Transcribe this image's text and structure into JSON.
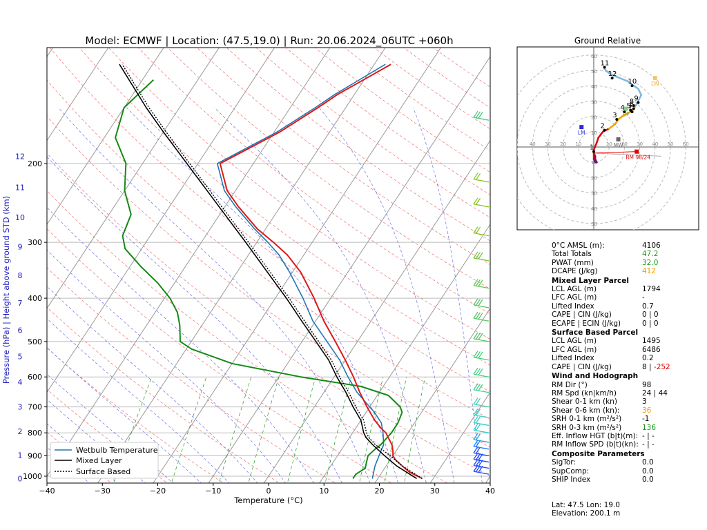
{
  "chart_data": {
    "type": "skew-t",
    "title": "Model: ECMWF | Location: (47.5,19.0) | Run: 20.06.2024_06UTC +060h",
    "xlabel": "Temperature (°C)",
    "ylabel": "Pressure (hPa)   |   Height above ground STD (km)",
    "xticks": [
      -40,
      -30,
      -20,
      -10,
      0,
      10,
      20,
      30,
      40
    ],
    "pressure_ticks": [
      200,
      300,
      400,
      500,
      600,
      700,
      800,
      900,
      1000
    ],
    "height_ticks_km": [
      0,
      1,
      2,
      3,
      4,
      5,
      6,
      7,
      8,
      9,
      10,
      11,
      12
    ],
    "legend": [
      "Wetbulb Temperature",
      "Mixed Layer",
      "Surface Based"
    ],
    "temperature": [
      [
        1012,
        28
      ],
      [
        980,
        25
      ],
      [
        950,
        23
      ],
      [
        920,
        21
      ],
      [
        900,
        20
      ],
      [
        880,
        19.5
      ],
      [
        850,
        18.5
      ],
      [
        820,
        17
      ],
      [
        800,
        16
      ],
      [
        780,
        14.5
      ],
      [
        750,
        12.5
      ],
      [
        700,
        9.5
      ],
      [
        650,
        6.5
      ],
      [
        600,
        3.5
      ],
      [
        550,
        0
      ],
      [
        500,
        -4
      ],
      [
        450,
        -8.5
      ],
      [
        400,
        -13
      ],
      [
        350,
        -18.5
      ],
      [
        320,
        -23
      ],
      [
        300,
        -27
      ],
      [
        280,
        -31.5
      ],
      [
        250,
        -37.5
      ],
      [
        230,
        -41.5
      ],
      [
        200,
        -46
      ],
      [
        170,
        -39
      ],
      [
        150,
        -35
      ],
      [
        140,
        -33
      ],
      [
        120,
        -27
      ]
    ],
    "dewpoint": [
      [
        1012,
        15.5
      ],
      [
        990,
        15.5
      ],
      [
        960,
        16.5
      ],
      [
        930,
        16
      ],
      [
        900,
        15.5
      ],
      [
        870,
        16
      ],
      [
        850,
        16.5
      ],
      [
        800,
        17
      ],
      [
        760,
        17
      ],
      [
        720,
        16.5
      ],
      [
        700,
        15.5
      ],
      [
        660,
        12
      ],
      [
        630,
        6
      ],
      [
        600,
        -6
      ],
      [
        560,
        -20
      ],
      [
        520,
        -29
      ],
      [
        500,
        -32
      ],
      [
        460,
        -34
      ],
      [
        430,
        -36
      ],
      [
        400,
        -39
      ],
      [
        370,
        -43
      ],
      [
        340,
        -48
      ],
      [
        310,
        -53
      ],
      [
        290,
        -55
      ],
      [
        260,
        -56
      ],
      [
        230,
        -60
      ],
      [
        200,
        -63
      ],
      [
        175,
        -68
      ],
      [
        150,
        -70
      ],
      [
        130,
        -68
      ]
    ],
    "wetbulb": [
      [
        1012,
        19
      ],
      [
        950,
        18
      ],
      [
        900,
        17.5
      ],
      [
        850,
        17
      ],
      [
        800,
        15.5
      ],
      [
        760,
        14
      ],
      [
        720,
        11.5
      ],
      [
        700,
        10
      ],
      [
        650,
        6
      ],
      [
        600,
        2.5
      ],
      [
        550,
        -1
      ],
      [
        500,
        -5.5
      ],
      [
        450,
        -10.5
      ],
      [
        400,
        -15
      ],
      [
        350,
        -20.5
      ],
      [
        320,
        -24.5
      ],
      [
        300,
        -28
      ],
      [
        280,
        -32
      ],
      [
        250,
        -38
      ],
      [
        230,
        -42
      ],
      [
        200,
        -46.5
      ],
      [
        170,
        -39.5
      ],
      [
        150,
        -35.5
      ],
      [
        140,
        -33.5
      ],
      [
        120,
        -28
      ]
    ],
    "mixed_layer_parcel": [
      [
        1012,
        27
      ],
      [
        950,
        22
      ],
      [
        900,
        18.5
      ],
      [
        850,
        15
      ],
      [
        820,
        13
      ],
      [
        800,
        12
      ],
      [
        750,
        10
      ],
      [
        700,
        7
      ],
      [
        650,
        4
      ],
      [
        600,
        0.5
      ],
      [
        550,
        -3
      ],
      [
        500,
        -7.5
      ],
      [
        450,
        -12.5
      ],
      [
        400,
        -18
      ],
      [
        350,
        -24.5
      ],
      [
        300,
        -32
      ],
      [
        250,
        -41
      ],
      [
        200,
        -52
      ],
      [
        170,
        -60
      ],
      [
        150,
        -66
      ],
      [
        120,
        -76
      ]
    ],
    "surface_based_parcel": [
      [
        1012,
        28
      ],
      [
        950,
        23
      ],
      [
        900,
        19.5
      ],
      [
        850,
        15.5
      ],
      [
        820,
        13.5
      ],
      [
        800,
        12.5
      ],
      [
        750,
        10.5
      ],
      [
        700,
        7.5
      ],
      [
        650,
        4.5
      ],
      [
        600,
        1
      ],
      [
        550,
        -2.5
      ],
      [
        500,
        -7
      ],
      [
        450,
        -12
      ],
      [
        400,
        -17.5
      ],
      [
        350,
        -24
      ],
      [
        300,
        -31.5
      ],
      [
        250,
        -40.5
      ],
      [
        200,
        -51.5
      ],
      [
        170,
        -59.5
      ],
      [
        150,
        -65.5
      ],
      [
        120,
        -75.5
      ]
    ],
    "hodograph": {
      "title": "Ground Relative",
      "rings": [
        10,
        20,
        30,
        40,
        50,
        60
      ],
      "axis_labels": [
        "40",
        "30",
        "20",
        "10",
        "10",
        "20",
        "30",
        "40",
        "50",
        "60",
        "70"
      ],
      "ring_labels": [
        "10",
        "20",
        "30",
        "40",
        "50",
        "60"
      ],
      "height_labels": [
        "1",
        "2",
        "3",
        "4",
        "5",
        "6",
        "7",
        "8",
        "9",
        "10",
        "11",
        "12"
      ],
      "markers": [
        {
          "label": "LM",
          "u": -8,
          "v": 13
        },
        {
          "label": "UP",
          "u": 21,
          "v": 25
        },
        {
          "label": "DN",
          "u": 40,
          "v": 45
        },
        {
          "label": "MW",
          "u": 16,
          "v": 5
        },
        {
          "label": "RM 98/24",
          "u": 28,
          "v": -3
        }
      ],
      "trace": [
        [
          0,
          -4
        ],
        [
          1,
          -6
        ],
        [
          1,
          -8
        ],
        [
          2,
          -10
        ],
        [
          1,
          -10
        ],
        [
          0,
          -8
        ],
        [
          0,
          -2
        ],
        [
          2,
          3
        ],
        [
          3,
          6
        ],
        [
          6,
          10
        ],
        [
          10,
          12
        ],
        [
          14,
          15
        ],
        [
          16,
          18
        ],
        [
          20,
          21
        ],
        [
          24,
          23
        ],
        [
          26,
          25
        ],
        [
          28,
          28
        ],
        [
          31,
          34
        ],
        [
          29,
          38
        ],
        [
          26,
          40
        ],
        [
          22,
          43
        ],
        [
          17,
          45
        ],
        [
          12,
          47
        ],
        [
          9,
          49
        ],
        [
          7,
          51
        ]
      ],
      "trace_colors": [
        "#6b1a6b",
        "#6b1a6b",
        "#6b1a6b",
        "#6b1a6b",
        "#6b1a6b",
        "#e00000",
        "#e00000",
        "#e00000",
        "#e00000",
        "#e00000",
        "#f0a000",
        "#f0a000",
        "#f0a000",
        "#f0a000",
        "#f0a000",
        "#f0a000",
        "#7fb8d8",
        "#7fb8d8",
        "#7fb8d8",
        "#7fb8d8",
        "#7fb8d8",
        "#7fb8d8",
        "#7fb8d8",
        "#7fb8d8"
      ]
    }
  },
  "parameters": {
    "freezing": {
      "label": "0°C AMSL (m):",
      "value": "4106"
    },
    "total_totals": {
      "label": "Total Totals",
      "value": "47.2"
    },
    "pwat": {
      "label": "PWAT (mm)",
      "value": "32.0"
    },
    "dcape": {
      "label": "DCAPE (J/kg)",
      "value": "412"
    },
    "ml_header": "Mixed Layer Parcel",
    "ml_lcl": {
      "label": "LCL AGL (m)",
      "value": "1794"
    },
    "ml_lfc": {
      "label": "LFC AGL (m)",
      "value": "-"
    },
    "ml_li": {
      "label": "Lifted Index",
      "value": "0.7"
    },
    "ml_cape": {
      "label": "CAPE | CIN (J/kg)",
      "value": "0  | 0"
    },
    "ml_ecape": {
      "label": "ECAPE | ECIN (J/kg)",
      "value": "0  | 0"
    },
    "sb_header": "Surface Based Parcel",
    "sb_lcl": {
      "label": "LCL AGL (m)",
      "value": "1495"
    },
    "sb_lfc": {
      "label": "LFC AGL (m)",
      "value": "6486"
    },
    "sb_li": {
      "label": "Lifted Index",
      "value": "0.2"
    },
    "sb_cape": {
      "label": "CAPE | CIN (J/kg)",
      "value_cape": "8  |",
      "value_cin": "-252"
    },
    "wind_header": "Wind and Hodograph",
    "rm_dir": {
      "label": "RM Dir (°)",
      "value": "98"
    },
    "rm_spd": {
      "label": "RM Spd (kn|km/h)",
      "value": "24 | 44"
    },
    "shear01": {
      "label": "Shear 0-1 km (kn)",
      "value": "3"
    },
    "shear06": {
      "label": "Shear 0-6 km (kn):",
      "value": "36"
    },
    "srh01": {
      "label": "SRH 0-1 km (m²/s²)",
      "value": "-1"
    },
    "srh03": {
      "label": "SRH 0-3 km (m²/s²)",
      "value": "136"
    },
    "eff_hgt": {
      "label": "Eff. Inflow HGT (b|t)(m):",
      "value": "- | -"
    },
    "rm_inflow": {
      "label": "RM Inflow SPD (b|t)(kn):",
      "value": "- | -"
    },
    "comp_header": "Composite Parameters",
    "sigtor": {
      "label": "SigTor:",
      "value": "0.0"
    },
    "supcomp": {
      "label": "SupComp:",
      "value": "0.0"
    },
    "ship": {
      "label": "SHIP Index",
      "value": "0.0"
    }
  },
  "footer": {
    "latlon": "Lat: 47.5  Lon: 19.0",
    "elevation": "Elevation: 200.1 m"
  }
}
